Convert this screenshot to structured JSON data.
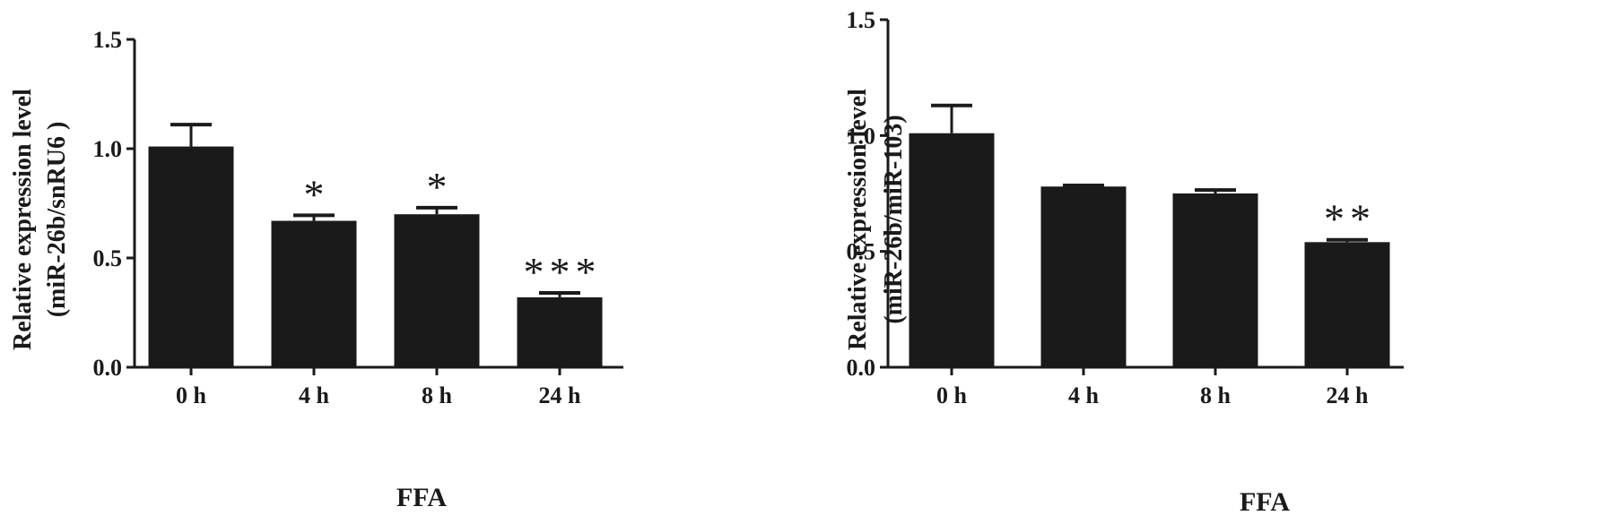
{
  "chart_data": [
    {
      "type": "bar",
      "categories": [
        "0 h",
        "4 h",
        "8 h",
        "24 h"
      ],
      "values": [
        1.01,
        0.67,
        0.7,
        0.32
      ],
      "errors": [
        0.1,
        0.025,
        0.03,
        0.02
      ],
      "significance": [
        "",
        "*",
        "*",
        "***"
      ],
      "xlabel": "FFA",
      "ylabel": [
        "Relative expression level",
        "(miR-26b/snRU6 )"
      ],
      "ylim": [
        0,
        1.5
      ],
      "yticks": [
        "0.0",
        "0.5",
        "1.0",
        "1.5"
      ],
      "bar_color": "#1a1a1a",
      "grid": false
    },
    {
      "type": "bar",
      "categories": [
        "0 h",
        "4 h",
        "8 h",
        "24 h"
      ],
      "values": [
        1.01,
        0.78,
        0.75,
        0.54
      ],
      "errors": [
        0.12,
        0.005,
        0.015,
        0.01
      ],
      "significance": [
        "",
        "",
        "",
        "**"
      ],
      "xlabel": "FFA",
      "ylabel": [
        "Relative expression level",
        "(miR-26b/miR-103)"
      ],
      "ylim": [
        0,
        1.5
      ],
      "yticks": [
        "0.0",
        "0.5",
        "1.0",
        "1.5"
      ],
      "bar_color": "#1a1a1a",
      "grid": false
    }
  ]
}
